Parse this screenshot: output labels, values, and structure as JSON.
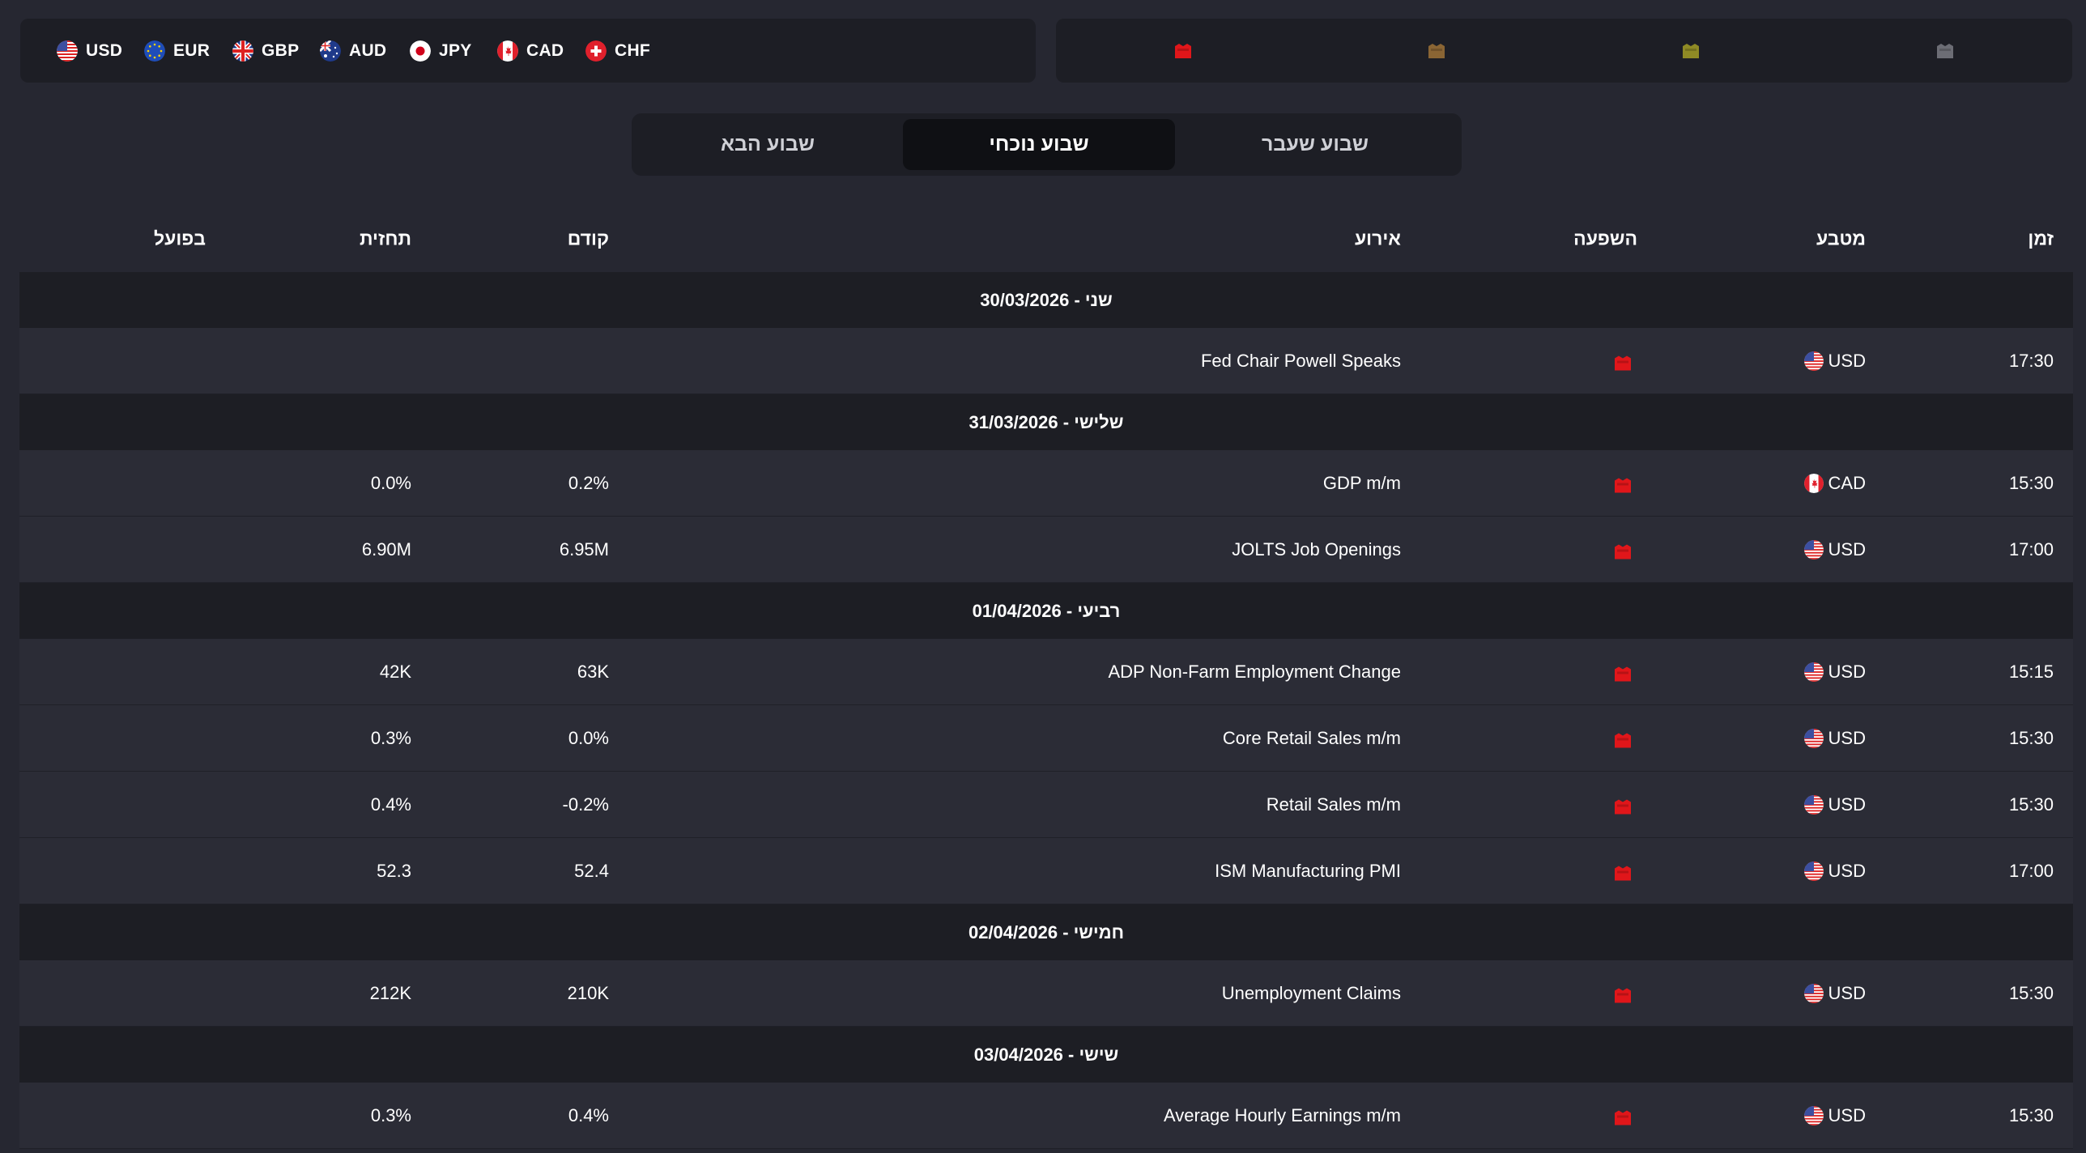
{
  "currencies": [
    {
      "code": "USD",
      "flag": "us"
    },
    {
      "code": "EUR",
      "flag": "eu"
    },
    {
      "code": "GBP",
      "flag": "gb"
    },
    {
      "code": "AUD",
      "flag": "au"
    },
    {
      "code": "JPY",
      "flag": "jp"
    },
    {
      "code": "CAD",
      "flag": "ca"
    },
    {
      "code": "CHF",
      "flag": "ch"
    }
  ],
  "impact_filters": [
    {
      "level": "high",
      "color": "#e0161a",
      "icon": "impact-high-icon"
    },
    {
      "level": "medium",
      "color": "#8a6534",
      "icon": "impact-medium-icon"
    },
    {
      "level": "low",
      "color": "#8f8a25",
      "icon": "impact-low-icon"
    },
    {
      "level": "none",
      "color": "#6c6d75",
      "icon": "impact-none-icon"
    }
  ],
  "week_tabs": {
    "previous": "שבוע שעבר",
    "current": "שבוע נוכחי",
    "next": "שבוע הבא",
    "active": "current"
  },
  "table": {
    "headers": {
      "time": "זמן",
      "currency": "מטבע",
      "impact": "השפעה",
      "event": "אירוע",
      "previous": "קודם",
      "forecast": "תחזית",
      "actual": "בפועל"
    },
    "days": [
      {
        "label": "30/03/2026 - שני",
        "events": [
          {
            "time": "17:30",
            "currency": "USD",
            "flag": "us",
            "impact": "high",
            "event": "Fed Chair Powell Speaks",
            "previous": "",
            "forecast": "",
            "actual": ""
          }
        ]
      },
      {
        "label": "31/03/2026 - שלישי",
        "events": [
          {
            "time": "15:30",
            "currency": "CAD",
            "flag": "ca",
            "impact": "high",
            "event": "GDP m/m",
            "previous": "0.2%",
            "forecast": "0.0%",
            "actual": ""
          },
          {
            "time": "17:00",
            "currency": "USD",
            "flag": "us",
            "impact": "high",
            "event": "JOLTS Job Openings",
            "previous": "6.95M",
            "forecast": "6.90M",
            "actual": ""
          }
        ]
      },
      {
        "label": "01/04/2026 - רביעי",
        "events": [
          {
            "time": "15:15",
            "currency": "USD",
            "flag": "us",
            "impact": "high",
            "event": "ADP Non-Farm Employment Change",
            "previous": "63K",
            "forecast": "42K",
            "actual": ""
          },
          {
            "time": "15:30",
            "currency": "USD",
            "flag": "us",
            "impact": "high",
            "event": "Core Retail Sales m/m",
            "previous": "0.0%",
            "forecast": "0.3%",
            "actual": ""
          },
          {
            "time": "15:30",
            "currency": "USD",
            "flag": "us",
            "impact": "high",
            "event": "Retail Sales m/m",
            "previous": "-0.2%",
            "forecast": "0.4%",
            "actual": ""
          },
          {
            "time": "17:00",
            "currency": "USD",
            "flag": "us",
            "impact": "high",
            "event": "ISM Manufacturing PMI",
            "previous": "52.4",
            "forecast": "52.3",
            "actual": ""
          }
        ]
      },
      {
        "label": "02/04/2026 - חמישי",
        "events": [
          {
            "time": "15:30",
            "currency": "USD",
            "flag": "us",
            "impact": "high",
            "event": "Unemployment Claims",
            "previous": "210K",
            "forecast": "212K",
            "actual": ""
          }
        ]
      },
      {
        "label": "03/04/2026 - שישי",
        "events": [
          {
            "time": "15:30",
            "currency": "USD",
            "flag": "us",
            "impact": "high",
            "event": "Average Hourly Earnings m/m",
            "previous": "0.4%",
            "forecast": "0.3%",
            "actual": ""
          }
        ]
      }
    ]
  }
}
